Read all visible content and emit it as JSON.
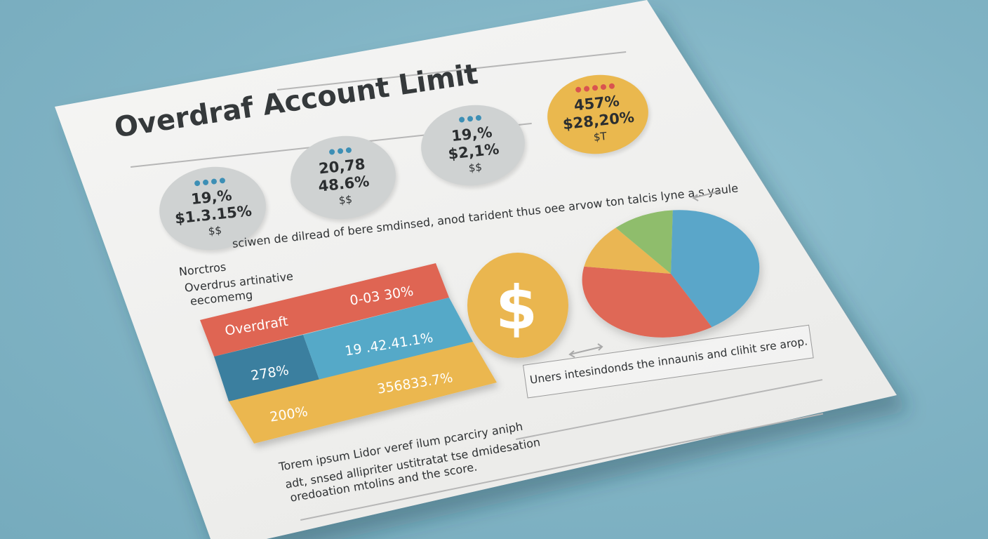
{
  "title": "Overdraf Account Limit",
  "stat_circles": [
    {
      "line1": "19,%",
      "line2": "$1.3.15%",
      "line3": "$$",
      "fill": "#cfd2d2",
      "dot_color": "#3d8fb5",
      "dot_count": 4
    },
    {
      "line1": "20,78",
      "line2": "48.6%",
      "line3": "$$",
      "fill": "#cfd2d2",
      "dot_color": "#3d8fb5",
      "dot_count": 3
    },
    {
      "line1": "19,%",
      "line2": "$2,1%",
      "line3": "$$",
      "fill": "#cfd2d2",
      "dot_color": "#3d8fb5",
      "dot_count": 3
    },
    {
      "line1": "457%",
      "line2": "$28,20%",
      "line3": "$T",
      "fill": "#eab84e",
      "dot_color": "#d9534f",
      "dot_count": 5
    }
  ],
  "text": {
    "line_right": "sciwen de dilread of bere smdinsed, anod tarident thus oee arvow ton talcis lyne a.s yaule",
    "left_para": [
      "Norctros",
      "Overdrus artinative",
      "eecomemg"
    ],
    "lower_para": [
      "Torem ipsum Lidor veref ilum pcarciry aniph",
      "adt, snsed allipriter ustitratat tse dmidesation",
      "oredoation mtolins and the score."
    ],
    "callout": "Uners intesindonds the innaunis and clihit sre arop."
  },
  "color_block": {
    "row1_label": "Overdraft",
    "row1_value": "0-03 30%",
    "row2_left": "278%",
    "row2_right": "19 .42.41.1%",
    "row3_value": "356833.7%",
    "row3_left": "200%",
    "colors": {
      "red": "#df6553",
      "blue": "#55a9c8",
      "darkblue": "#3a7f9f",
      "yellow": "#ebb74f"
    }
  },
  "coin": {
    "symbol": "$",
    "color": "#eab650"
  },
  "chart_data": {
    "type": "pie",
    "title": "",
    "slices": [
      {
        "color": "#5aa6c9",
        "value": 42
      },
      {
        "color": "#df6756",
        "value": 36
      },
      {
        "color": "#eab652",
        "value": 11
      },
      {
        "color": "#8fbd6c",
        "value": 11
      }
    ]
  }
}
